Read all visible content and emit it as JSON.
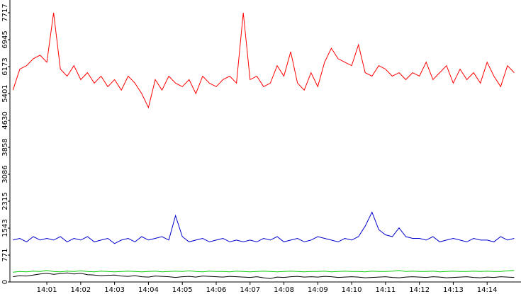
{
  "chart_data": {
    "type": "line",
    "x": [
      0,
      0.2,
      0.4,
      0.6,
      0.8,
      1,
      1.2,
      1.4,
      1.6,
      1.8,
      2,
      2.2,
      2.4,
      2.6,
      2.8,
      3,
      3.2,
      3.4,
      3.6,
      3.8,
      4,
      4.2,
      4.4,
      4.6,
      4.8,
      5,
      5.2,
      5.4,
      5.6,
      5.8,
      6,
      6.2,
      6.4,
      6.6,
      6.8,
      7,
      7.2,
      7.4,
      7.6,
      7.8,
      8,
      8.2,
      8.4,
      8.6,
      8.8,
      9,
      9.2,
      9.4,
      9.6,
      9.8,
      10,
      10.2,
      10.4,
      10.6,
      10.8,
      11,
      11.2,
      11.4,
      11.6,
      11.8,
      12,
      12.2,
      12.4,
      12.6,
      12.8,
      13,
      13.2,
      13.4,
      13.6,
      13.8,
      14,
      14.2,
      14.4,
      14.6,
      14.8
    ],
    "series": [
      {
        "color": "#ff0000",
        "values": [
          5500,
          6100,
          6200,
          6400,
          6500,
          6300,
          7717,
          6100,
          5900,
          6200,
          5800,
          6000,
          5700,
          5900,
          5600,
          5800,
          5500,
          5900,
          5700,
          5400,
          5000,
          5800,
          5500,
          5900,
          5700,
          5600,
          5800,
          5400,
          5900,
          5700,
          5600,
          5800,
          5900,
          5700,
          7717,
          5800,
          5900,
          5600,
          5700,
          6200,
          5900,
          6600,
          5700,
          5500,
          6000,
          5600,
          6300,
          6700,
          6400,
          6300,
          6200,
          6800,
          6000,
          5900,
          6200,
          6100,
          5900,
          6000,
          5800,
          6000,
          5900,
          6300,
          5800,
          6000,
          6200,
          5700,
          6100,
          5800,
          6000,
          5700,
          6300,
          5900,
          5600,
          6200,
          6000
        ]
      },
      {
        "color": "#0000cc",
        "values": [
          1200,
          1250,
          1150,
          1300,
          1200,
          1250,
          1200,
          1300,
          1150,
          1250,
          1200,
          1300,
          1150,
          1200,
          1250,
          1100,
          1200,
          1250,
          1150,
          1300,
          1200,
          1250,
          1300,
          1200,
          1900,
          1300,
          1150,
          1200,
          1250,
          1150,
          1200,
          1250,
          1150,
          1200,
          1150,
          1200,
          1150,
          1250,
          1200,
          1300,
          1150,
          1200,
          1250,
          1150,
          1200,
          1300,
          1250,
          1200,
          1150,
          1250,
          1200,
          1300,
          1600,
          2000,
          1500,
          1350,
          1300,
          1550,
          1300,
          1250,
          1250,
          1200,
          1300,
          1150,
          1200,
          1250,
          1200,
          1150,
          1250,
          1200,
          1200,
          1150,
          1300,
          1200,
          1250
        ]
      },
      {
        "color": "#00cc00",
        "values": [
          280,
          300,
          290,
          310,
          300,
          330,
          300,
          290,
          310,
          300,
          320,
          300,
          290,
          310,
          300,
          290,
          300,
          310,
          300,
          290,
          300,
          310,
          290,
          300,
          310,
          300,
          320,
          300,
          290,
          310,
          300,
          300,
          290,
          310,
          300,
          290,
          300,
          310,
          300,
          290,
          300,
          310,
          300,
          290,
          300,
          300,
          310,
          290,
          300,
          310,
          300,
          300,
          290,
          310,
          300,
          300,
          310,
          330,
          300,
          310,
          300,
          300,
          310,
          290,
          300,
          310,
          300,
          300,
          310,
          300,
          310,
          300,
          300,
          320,
          330
        ]
      },
      {
        "color": "#000000",
        "values": [
          150,
          180,
          170,
          200,
          230,
          250,
          220,
          240,
          260,
          230,
          250,
          210,
          200,
          180,
          190,
          200,
          170,
          160,
          180,
          150,
          140,
          170,
          160,
          150,
          130,
          150,
          160,
          140,
          170,
          160,
          150,
          140,
          160,
          150,
          140,
          130,
          150,
          120,
          100,
          140,
          130,
          150,
          160,
          140,
          150,
          140,
          160,
          150,
          130,
          140,
          150,
          140,
          120,
          130,
          140,
          150,
          130,
          120,
          140,
          150,
          140,
          130,
          150,
          140,
          120,
          130,
          140,
          150,
          130,
          120,
          140,
          130,
          150,
          140,
          130
        ]
      }
    ],
    "xlim": [
      -0.09,
      15.0
    ],
    "xticks": [
      {
        "value": 1,
        "label": "14:01"
      },
      {
        "value": 2,
        "label": "14:02"
      },
      {
        "value": 3,
        "label": "14:03"
      },
      {
        "value": 4,
        "label": "14:04"
      },
      {
        "value": 5,
        "label": "14:05"
      },
      {
        "value": 6,
        "label": "14:06"
      },
      {
        "value": 7,
        "label": "14:07"
      },
      {
        "value": 8,
        "label": "14:08"
      },
      {
        "value": 9,
        "label": "14:09"
      },
      {
        "value": 10,
        "label": "14:10"
      },
      {
        "value": 11,
        "label": "14:11"
      },
      {
        "value": 12,
        "label": "14:12"
      },
      {
        "value": 13,
        "label": "14:13"
      },
      {
        "value": 14,
        "label": "14:14"
      }
    ],
    "ylim": [
      0,
      8083
    ],
    "yticks": [
      0,
      771,
      1543,
      2315,
      3086,
      3858,
      4630,
      5401,
      6173,
      6945,
      7717
    ]
  }
}
